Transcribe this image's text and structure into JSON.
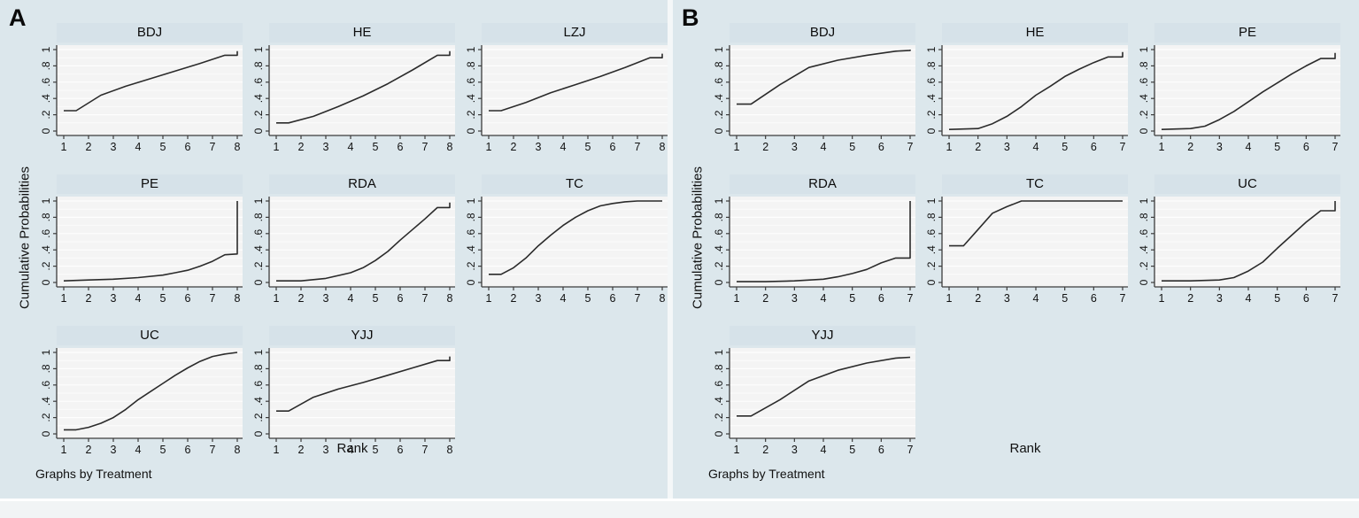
{
  "colors": {
    "panel_bg": "#dce7ec",
    "header_bg": "#d6e2e9",
    "plot_bg": "#f4f4f4",
    "grid_major": "#ffffff",
    "grid_minor": "#fbfbfb",
    "line": "#2b2b2b",
    "axis": "#3c3c3c",
    "text": "#111111",
    "bottom_strip": "#f1f4f5"
  },
  "chart_data": [
    {
      "panel": "A",
      "type": "line",
      "xlabel": "Rank",
      "ylabel": "Cumulative Probabilities",
      "note": "Graphs by Treatment",
      "xlim": [
        1,
        8
      ],
      "ylim": [
        0,
        1
      ],
      "xticks": [
        1,
        2,
        3,
        4,
        5,
        6,
        7,
        8
      ],
      "yticks": [
        0,
        0.2,
        0.4,
        0.6,
        0.8,
        1
      ],
      "ytick_labels": [
        "0",
        ".2",
        ".4",
        ".6",
        ".8",
        "1"
      ],
      "legend": "none",
      "grid": "horizontal-white",
      "subplots": [
        {
          "title": "BDJ",
          "points": [
            [
              1,
              0.25
            ],
            [
              1.5,
              0.25
            ],
            [
              2.5,
              0.44
            ],
            [
              3.5,
              0.55
            ],
            [
              5,
              0.69
            ],
            [
              6.5,
              0.83
            ],
            [
              7.5,
              0.93
            ],
            [
              8,
              0.93
            ],
            [
              8,
              0.98
            ]
          ]
        },
        {
          "title": "HE",
          "points": [
            [
              1,
              0.1
            ],
            [
              1.5,
              0.1
            ],
            [
              2.5,
              0.18
            ],
            [
              3.5,
              0.3
            ],
            [
              4.5,
              0.43
            ],
            [
              5.5,
              0.58
            ],
            [
              6.5,
              0.75
            ],
            [
              7.5,
              0.93
            ],
            [
              8,
              0.93
            ],
            [
              8,
              0.98
            ]
          ]
        },
        {
          "title": "LZJ",
          "points": [
            [
              1,
              0.25
            ],
            [
              1.5,
              0.25
            ],
            [
              2.5,
              0.35
            ],
            [
              3.5,
              0.47
            ],
            [
              4.5,
              0.57
            ],
            [
              5.5,
              0.67
            ],
            [
              6.5,
              0.78
            ],
            [
              7.5,
              0.9
            ],
            [
              8,
              0.9
            ],
            [
              8,
              0.95
            ]
          ]
        },
        {
          "title": "PE",
          "points": [
            [
              1,
              0.02
            ],
            [
              2,
              0.03
            ],
            [
              3,
              0.04
            ],
            [
              4,
              0.06
            ],
            [
              5,
              0.09
            ],
            [
              5.5,
              0.12
            ],
            [
              6,
              0.15
            ],
            [
              6.5,
              0.2
            ],
            [
              7,
              0.26
            ],
            [
              7.5,
              0.34
            ],
            [
              8,
              0.35
            ],
            [
              8,
              1.0
            ]
          ]
        },
        {
          "title": "RDA",
          "points": [
            [
              1,
              0.02
            ],
            [
              2,
              0.02
            ],
            [
              3,
              0.05
            ],
            [
              4,
              0.12
            ],
            [
              4.5,
              0.18
            ],
            [
              5,
              0.27
            ],
            [
              5.5,
              0.38
            ],
            [
              6,
              0.52
            ],
            [
              6.5,
              0.65
            ],
            [
              7,
              0.78
            ],
            [
              7.5,
              0.92
            ],
            [
              8,
              0.92
            ],
            [
              8,
              0.98
            ]
          ]
        },
        {
          "title": "TC",
          "points": [
            [
              1,
              0.1
            ],
            [
              1.5,
              0.1
            ],
            [
              2,
              0.18
            ],
            [
              2.5,
              0.3
            ],
            [
              3,
              0.45
            ],
            [
              3.5,
              0.58
            ],
            [
              4,
              0.7
            ],
            [
              4.5,
              0.8
            ],
            [
              5,
              0.88
            ],
            [
              5.5,
              0.94
            ],
            [
              6,
              0.97
            ],
            [
              6.5,
              0.99
            ],
            [
              7,
              1.0
            ],
            [
              8,
              1.0
            ]
          ]
        },
        {
          "title": "UC",
          "points": [
            [
              1,
              0.05
            ],
            [
              1.5,
              0.05
            ],
            [
              2,
              0.08
            ],
            [
              2.5,
              0.13
            ],
            [
              3,
              0.2
            ],
            [
              3.5,
              0.3
            ],
            [
              4,
              0.42
            ],
            [
              4.5,
              0.52
            ],
            [
              5,
              0.62
            ],
            [
              5.5,
              0.72
            ],
            [
              6,
              0.81
            ],
            [
              6.5,
              0.89
            ],
            [
              7,
              0.95
            ],
            [
              7.5,
              0.98
            ],
            [
              8,
              1.0
            ]
          ]
        },
        {
          "title": "YJJ",
          "points": [
            [
              1,
              0.28
            ],
            [
              1.5,
              0.28
            ],
            [
              2.5,
              0.45
            ],
            [
              3.5,
              0.55
            ],
            [
              4.5,
              0.63
            ],
            [
              5.5,
              0.72
            ],
            [
              6.5,
              0.81
            ],
            [
              7.5,
              0.9
            ],
            [
              8,
              0.9
            ],
            [
              8,
              0.95
            ]
          ]
        }
      ]
    },
    {
      "panel": "B",
      "type": "line",
      "xlabel": "Rank",
      "ylabel": "Cumulative Probabilities",
      "note": "Graphs by Treatment",
      "xlim": [
        1,
        7
      ],
      "ylim": [
        0,
        1
      ],
      "xticks": [
        1,
        2,
        3,
        4,
        5,
        6,
        7
      ],
      "yticks": [
        0,
        0.2,
        0.4,
        0.6,
        0.8,
        1
      ],
      "ytick_labels": [
        "0",
        ".2",
        ".4",
        ".6",
        ".8",
        "1"
      ],
      "legend": "none",
      "grid": "horizontal-white",
      "subplots": [
        {
          "title": "BDJ",
          "points": [
            [
              1,
              0.33
            ],
            [
              1.5,
              0.33
            ],
            [
              2.5,
              0.57
            ],
            [
              3.5,
              0.78
            ],
            [
              4.5,
              0.87
            ],
            [
              5.5,
              0.93
            ],
            [
              6.5,
              0.98
            ],
            [
              7,
              0.99
            ],
            [
              7,
              1.0
            ]
          ]
        },
        {
          "title": "HE",
          "points": [
            [
              1,
              0.02
            ],
            [
              2,
              0.03
            ],
            [
              2.5,
              0.09
            ],
            [
              3,
              0.18
            ],
            [
              3.5,
              0.3
            ],
            [
              4,
              0.44
            ],
            [
              4.5,
              0.55
            ],
            [
              5,
              0.67
            ],
            [
              5.5,
              0.76
            ],
            [
              6,
              0.84
            ],
            [
              6.5,
              0.91
            ],
            [
              7,
              0.91
            ],
            [
              7,
              0.97
            ]
          ]
        },
        {
          "title": "PE",
          "points": [
            [
              1,
              0.02
            ],
            [
              2,
              0.03
            ],
            [
              2.5,
              0.06
            ],
            [
              3,
              0.14
            ],
            [
              3.5,
              0.24
            ],
            [
              4,
              0.36
            ],
            [
              4.5,
              0.48
            ],
            [
              5,
              0.59
            ],
            [
              5.5,
              0.7
            ],
            [
              6,
              0.8
            ],
            [
              6.5,
              0.89
            ],
            [
              7,
              0.89
            ],
            [
              7,
              0.96
            ]
          ]
        },
        {
          "title": "RDA",
          "points": [
            [
              1,
              0.01
            ],
            [
              2,
              0.01
            ],
            [
              3,
              0.02
            ],
            [
              4,
              0.04
            ],
            [
              4.5,
              0.07
            ],
            [
              5,
              0.11
            ],
            [
              5.5,
              0.16
            ],
            [
              6,
              0.24
            ],
            [
              6.5,
              0.3
            ],
            [
              7,
              0.3
            ],
            [
              7,
              1.0
            ]
          ]
        },
        {
          "title": "TC",
          "points": [
            [
              1,
              0.45
            ],
            [
              1.5,
              0.45
            ],
            [
              2,
              0.65
            ],
            [
              2.5,
              0.85
            ],
            [
              3,
              0.93
            ],
            [
              3.5,
              1.0
            ],
            [
              7,
              1.0
            ]
          ]
        },
        {
          "title": "UC",
          "points": [
            [
              1,
              0.02
            ],
            [
              2,
              0.02
            ],
            [
              3,
              0.03
            ],
            [
              3.5,
              0.06
            ],
            [
              4,
              0.14
            ],
            [
              4.5,
              0.25
            ],
            [
              5,
              0.42
            ],
            [
              5.5,
              0.58
            ],
            [
              6,
              0.74
            ],
            [
              6.5,
              0.88
            ],
            [
              7,
              0.88
            ],
            [
              7,
              1.0
            ]
          ]
        },
        {
          "title": "YJJ",
          "points": [
            [
              1,
              0.22
            ],
            [
              1.5,
              0.22
            ],
            [
              2.5,
              0.42
            ],
            [
              3.5,
              0.65
            ],
            [
              4.5,
              0.78
            ],
            [
              5.5,
              0.87
            ],
            [
              6.5,
              0.93
            ],
            [
              7,
              0.94
            ]
          ]
        }
      ]
    }
  ]
}
